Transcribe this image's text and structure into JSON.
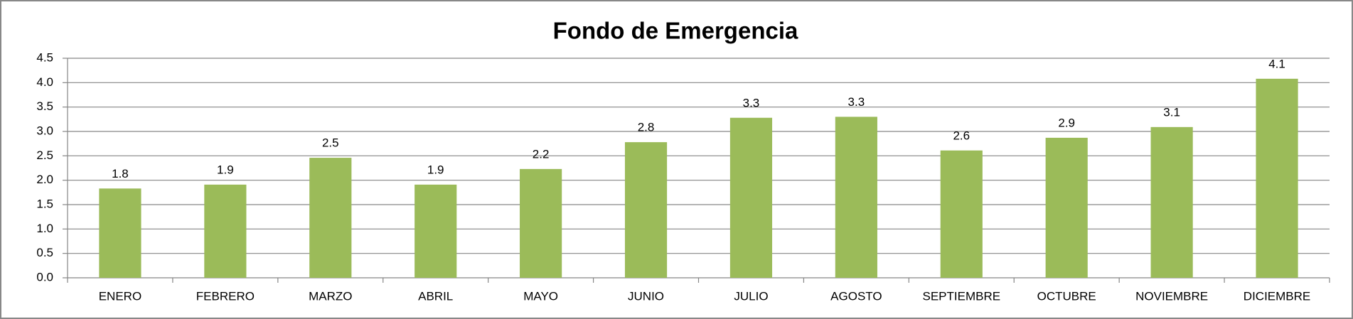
{
  "chart_data": {
    "type": "bar",
    "title": "Fondo de Emergencia",
    "categories": [
      "ENERO",
      "FEBRERO",
      "MARZO",
      "ABRIL",
      "MAYO",
      "JUNIO",
      "JULIO",
      "AGOSTO",
      "SEPTIEMBRE",
      "OCTUBRE",
      "NOVIEMBRE",
      "DICIEMBRE"
    ],
    "values": [
      1.83,
      1.91,
      2.46,
      1.91,
      2.23,
      2.78,
      3.28,
      3.3,
      2.61,
      2.87,
      3.09,
      4.08
    ],
    "value_labels": [
      "1.8",
      "1.9",
      "2.5",
      "1.9",
      "2.2",
      "2.8",
      "3.3",
      "3.3",
      "2.6",
      "2.9",
      "3.1",
      "4.1"
    ],
    "color": "#9bbb59",
    "ylim": [
      0,
      4.5
    ],
    "yticks": [
      {
        "value": 0,
        "label": "0.0"
      },
      0.5,
      {
        "value": 1,
        "label": "1.0"
      },
      1.5,
      {
        "value": 2,
        "label": "2.0"
      },
      2.5,
      {
        "value": 3,
        "label": "3.0"
      },
      3.5,
      {
        "value": 4,
        "label": "4.0"
      },
      4.5
    ],
    "grid": true
  }
}
